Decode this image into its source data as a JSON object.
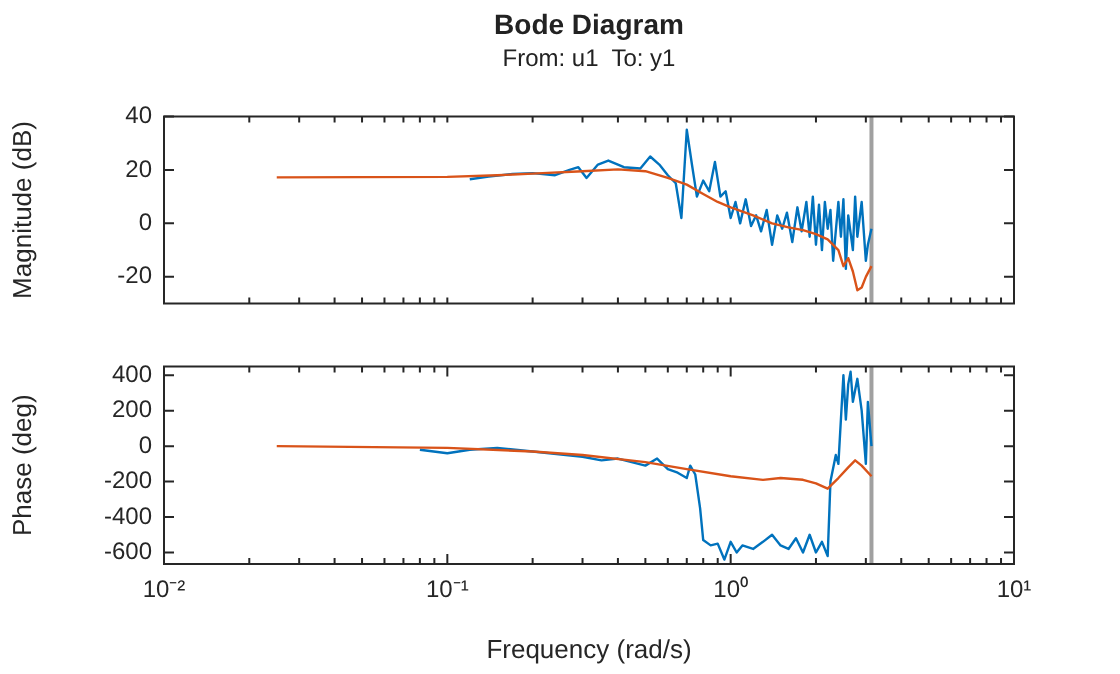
{
  "chart_data": [
    {
      "type": "line",
      "title": "Bode Diagram",
      "subtitle": "From: u1  To: y1",
      "ylabel": "Magnitude (dB)",
      "log": "x",
      "grid": false,
      "legend": false,
      "marker": "none",
      "line_style": "solid",
      "tick_labels": "y",
      "xlim": [
        0.01,
        10
      ],
      "xticks": [
        {
          "value": 0.01,
          "label": null
        },
        {
          "value": 0.02,
          "label": null
        },
        {
          "value": 0.03,
          "label": null
        },
        {
          "value": 0.04,
          "label": null
        },
        {
          "value": 0.05,
          "label": null
        },
        {
          "value": 0.06,
          "label": null
        },
        {
          "value": 0.07,
          "label": null
        },
        {
          "value": 0.08,
          "label": null
        },
        {
          "value": 0.09,
          "label": null
        },
        {
          "value": 0.1,
          "label": null
        },
        {
          "value": 0.2,
          "label": null
        },
        {
          "value": 0.3,
          "label": null
        },
        {
          "value": 0.4,
          "label": null
        },
        {
          "value": 0.5,
          "label": null
        },
        {
          "value": 0.6,
          "label": null
        },
        {
          "value": 0.7,
          "label": null
        },
        {
          "value": 0.8,
          "label": null
        },
        {
          "value": 0.9,
          "label": null
        },
        {
          "value": 1,
          "label": null
        },
        {
          "value": 2,
          "label": null
        },
        {
          "value": 3,
          "label": null
        },
        {
          "value": 4,
          "label": null
        },
        {
          "value": 5,
          "label": null
        },
        {
          "value": 6,
          "label": null
        },
        {
          "value": 7,
          "label": null
        },
        {
          "value": 8,
          "label": null
        },
        {
          "value": 9,
          "label": null
        },
        {
          "value": 10,
          "label": null
        }
      ],
      "ylim": [
        -30,
        40
      ],
      "yticks": [
        -20,
        0,
        20,
        40
      ],
      "ref_lines": [
        {
          "axis": "x",
          "value": 3.14,
          "label": null,
          "color": "#a0a0a0"
        }
      ],
      "series": [
        {
          "color": "#0072bd",
          "x": [
            0.12,
            0.14,
            0.17,
            0.2,
            0.24,
            0.27,
            0.29,
            0.31,
            0.34,
            0.37,
            0.42,
            0.48,
            0.52,
            0.56,
            0.6,
            0.64,
            0.67,
            0.7,
            0.73,
            0.76,
            0.8,
            0.84,
            0.88,
            0.92,
            0.96,
            1.0,
            1.04,
            1.08,
            1.13,
            1.18,
            1.23,
            1.28,
            1.34,
            1.4,
            1.46,
            1.52,
            1.58,
            1.65,
            1.72,
            1.78,
            1.85,
            1.9,
            1.95,
            2.0,
            2.05,
            2.1,
            2.15,
            2.2,
            2.25,
            2.3,
            2.4,
            2.45,
            2.5,
            2.55,
            2.6,
            2.7,
            2.75,
            2.8,
            2.9,
            3.0,
            3.05,
            3.14
          ],
          "values": [
            16.5,
            17.5,
            18.5,
            18.8,
            18,
            20,
            21,
            17,
            22,
            23.5,
            21,
            20.5,
            25,
            22,
            18,
            15,
            2,
            35,
            22,
            10,
            16,
            12,
            23,
            10,
            12,
            2,
            8,
            0,
            9,
            -1,
            3,
            -3,
            5,
            -8,
            3,
            -2,
            4,
            -7,
            6,
            -3,
            8,
            -5,
            10,
            -8,
            7,
            -10,
            8,
            -2,
            5,
            -14,
            8,
            -5,
            9,
            -17,
            3,
            -10,
            10,
            -5,
            8,
            -14,
            -8,
            -2
          ]
        },
        {
          "color": "#d95319",
          "x": [
            0.025,
            0.05,
            0.1,
            0.15,
            0.2,
            0.3,
            0.4,
            0.5,
            0.6,
            0.7,
            0.8,
            0.9,
            1.0,
            1.2,
            1.4,
            1.6,
            1.8,
            2.0,
            2.2,
            2.4,
            2.5,
            2.6,
            2.7,
            2.8,
            2.9,
            3.0,
            3.14
          ],
          "values": [
            17.2,
            17.3,
            17.4,
            18,
            18.6,
            19.5,
            20.2,
            19.5,
            17,
            14.5,
            11,
            8,
            6,
            3,
            0,
            -1.5,
            -2.5,
            -4,
            -6,
            -10,
            -16,
            -13,
            -18,
            -25,
            -24,
            -20,
            -16
          ]
        }
      ]
    },
    {
      "type": "line",
      "xlabel": "Frequency (rad/s)",
      "ylabel": "Phase (deg)",
      "log": "x",
      "grid": false,
      "legend": false,
      "marker": "none",
      "line_style": "solid",
      "xlim": [
        0.01,
        10
      ],
      "xticks": [
        {
          "value": 0.01,
          "label": "10⁻²"
        },
        {
          "value": 0.02,
          "label": null
        },
        {
          "value": 0.03,
          "label": null
        },
        {
          "value": 0.04,
          "label": null
        },
        {
          "value": 0.05,
          "label": null
        },
        {
          "value": 0.06,
          "label": null
        },
        {
          "value": 0.07,
          "label": null
        },
        {
          "value": 0.08,
          "label": null
        },
        {
          "value": 0.09,
          "label": null
        },
        {
          "value": 0.1,
          "label": "10⁻¹"
        },
        {
          "value": 0.2,
          "label": null
        },
        {
          "value": 0.3,
          "label": null
        },
        {
          "value": 0.4,
          "label": null
        },
        {
          "value": 0.5,
          "label": null
        },
        {
          "value": 0.6,
          "label": null
        },
        {
          "value": 0.7,
          "label": null
        },
        {
          "value": 0.8,
          "label": null
        },
        {
          "value": 0.9,
          "label": null
        },
        {
          "value": 1,
          "label": "10⁰"
        },
        {
          "value": 2,
          "label": null
        },
        {
          "value": 3,
          "label": null
        },
        {
          "value": 4,
          "label": null
        },
        {
          "value": 5,
          "label": null
        },
        {
          "value": 6,
          "label": null
        },
        {
          "value": 7,
          "label": null
        },
        {
          "value": 8,
          "label": null
        },
        {
          "value": 9,
          "label": null
        },
        {
          "value": 10,
          "label": "10¹"
        }
      ],
      "ylim": [
        -665,
        450
      ],
      "yticks": [
        -600,
        -400,
        -200,
        0,
        200,
        400
      ],
      "ref_lines": [
        {
          "axis": "x",
          "value": 3.14,
          "label": null,
          "color": "#a0a0a0"
        }
      ],
      "series": [
        {
          "color": "#0072bd",
          "x": [
            0.08,
            0.1,
            0.12,
            0.15,
            0.2,
            0.3,
            0.35,
            0.4,
            0.5,
            0.55,
            0.6,
            0.65,
            0.7,
            0.72,
            0.75,
            0.78,
            0.8,
            0.85,
            0.9,
            0.95,
            1.0,
            1.05,
            1.1,
            1.2,
            1.3,
            1.4,
            1.5,
            1.6,
            1.7,
            1.8,
            1.9,
            2.0,
            2.1,
            2.2,
            2.25,
            2.35,
            2.4,
            2.5,
            2.55,
            2.6,
            2.65,
            2.7,
            2.8,
            2.9,
            3.0,
            3.05,
            3.14
          ],
          "values": [
            -20,
            -40,
            -20,
            -10,
            -30,
            -60,
            -80,
            -70,
            -110,
            -70,
            -130,
            -150,
            -180,
            -110,
            -160,
            -350,
            -530,
            -560,
            -550,
            -640,
            -540,
            -600,
            -560,
            -580,
            -540,
            -500,
            -560,
            -580,
            -520,
            -600,
            -500,
            -600,
            -540,
            -620,
            -200,
            -50,
            -100,
            400,
            150,
            350,
            420,
            250,
            380,
            200,
            -100,
            250,
            0
          ]
        },
        {
          "color": "#d95319",
          "x": [
            0.025,
            0.1,
            0.2,
            0.3,
            0.5,
            0.7,
            1.0,
            1.3,
            1.5,
            1.8,
            2.0,
            2.2,
            2.4,
            2.6,
            2.75,
            2.9,
            3.14
          ],
          "values": [
            0,
            -10,
            -30,
            -50,
            -90,
            -130,
            -170,
            -190,
            -180,
            -190,
            -210,
            -240,
            -180,
            -120,
            -80,
            -110,
            -170
          ]
        }
      ]
    }
  ]
}
